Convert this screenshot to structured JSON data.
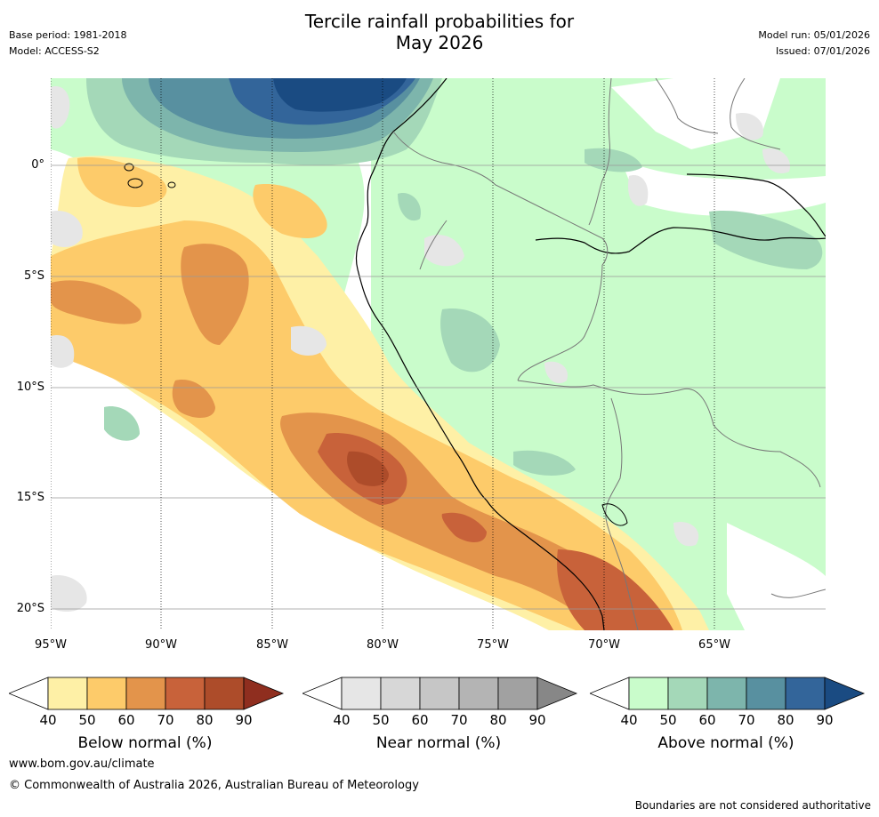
{
  "title_line1": "Tercile rainfall probabilities for",
  "title_line2": "May 2026",
  "meta_left": {
    "base_period": "Base period: 1981-2018",
    "model": "Model: ACCESS-S2"
  },
  "meta_right": {
    "model_run": "Model run: 05/01/2026",
    "issued": "Issued: 07/01/2026"
  },
  "map": {
    "lat_labels": [
      "0°",
      "5°S",
      "10°S",
      "15°S",
      "20°S"
    ],
    "lon_labels": [
      "95°W",
      "90°W",
      "85°W",
      "80°W",
      "75°W",
      "70°W",
      "65°W"
    ]
  },
  "colorbars": [
    {
      "label": "Below normal (%)",
      "ticks": [
        "40",
        "50",
        "60",
        "70",
        "80",
        "90"
      ],
      "colors": [
        "#fef0a6",
        "#fdcb6a",
        "#e3944b",
        "#c8623a",
        "#ad4c2a",
        "#8f2e1f"
      ]
    },
    {
      "label": "Near normal (%)",
      "ticks": [
        "40",
        "50",
        "60",
        "70",
        "80",
        "90"
      ],
      "colors": [
        "#e6e6e6",
        "#d7d7d7",
        "#c6c6c6",
        "#b4b4b4",
        "#a1a1a1",
        "#878787"
      ]
    },
    {
      "label": "Above normal (%)",
      "ticks": [
        "40",
        "50",
        "60",
        "70",
        "80",
        "90"
      ],
      "colors": [
        "#c9fccb",
        "#a4d8b8",
        "#7db5ac",
        "#5890a0",
        "#33659a",
        "#1a4b82"
      ]
    }
  ],
  "footer": {
    "website": "www.bom.gov.au/climate",
    "copyright": "© Commonwealth of Australia 2026, Australian Bureau of Meteorology",
    "disclaimer": "Boundaries are not considered authoritative"
  }
}
